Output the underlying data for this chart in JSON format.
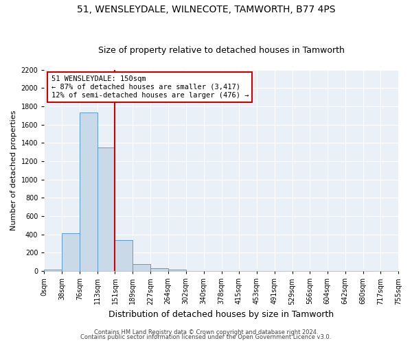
{
  "title1": "51, WENSLEYDALE, WILNECOTE, TAMWORTH, B77 4PS",
  "title2": "Size of property relative to detached houses in Tamworth",
  "xlabel": "Distribution of detached houses by size in Tamworth",
  "ylabel": "Number of detached properties",
  "bar_edges": [
    0,
    38,
    76,
    113,
    151,
    189,
    227,
    264,
    302,
    340,
    378,
    415,
    453,
    491,
    529,
    566,
    604,
    642,
    680,
    717,
    755
  ],
  "bar_heights": [
    15,
    410,
    1730,
    1350,
    340,
    75,
    30,
    15,
    0,
    0,
    0,
    0,
    0,
    0,
    0,
    0,
    0,
    0,
    0,
    0
  ],
  "bar_color": "#c9d9e8",
  "bar_edge_color": "#5b9bd5",
  "property_line_x": 151,
  "property_line_color": "#cc0000",
  "annotation_line1": "51 WENSLEYDALE: 150sqm",
  "annotation_line2": "← 87% of detached houses are smaller (3,417)",
  "annotation_line3": "12% of semi-detached houses are larger (476) →",
  "annotation_box_color": "#cc0000",
  "ylim": [
    0,
    2200
  ],
  "yticks": [
    0,
    200,
    400,
    600,
    800,
    1000,
    1200,
    1400,
    1600,
    1800,
    2000,
    2200
  ],
  "background_color": "#eaf0f8",
  "footer1": "Contains HM Land Registry data © Crown copyright and database right 2024.",
  "footer2": "Contains public sector information licensed under the Open Government Licence v3.0.",
  "title1_fontsize": 10,
  "title2_fontsize": 9,
  "xlabel_fontsize": 9,
  "ylabel_fontsize": 8,
  "tick_fontsize": 7,
  "annotation_fontsize": 7.5,
  "footer_fontsize": 6
}
